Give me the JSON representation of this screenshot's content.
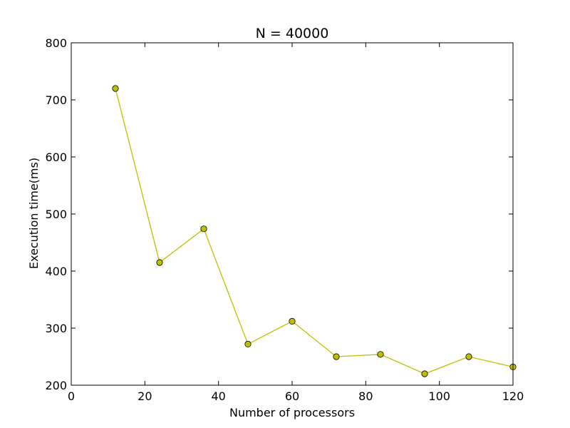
{
  "chart_data": {
    "type": "line",
    "title": "N = 40000",
    "xlabel": "Number of processors",
    "ylabel": "Execution time(ms)",
    "xlim": [
      0,
      120
    ],
    "ylim": [
      200,
      800
    ],
    "xticks": [
      0,
      20,
      40,
      60,
      80,
      100,
      120
    ],
    "yticks": [
      200,
      300,
      400,
      500,
      600,
      700,
      800
    ],
    "grid": false,
    "series": [
      {
        "color": "#bfbf00",
        "marker": "circle",
        "x": [
          12,
          24,
          36,
          48,
          60,
          72,
          84,
          96,
          108,
          120
        ],
        "y": [
          720,
          415,
          474,
          272,
          312,
          250,
          254,
          220,
          250,
          232
        ]
      }
    ]
  }
}
